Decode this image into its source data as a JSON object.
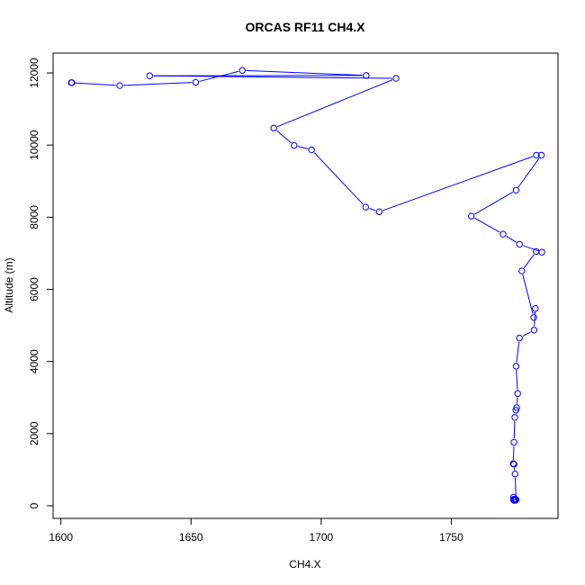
{
  "chart_data": {
    "type": "line",
    "title": "ORCAS RF11 CH4.X",
    "xlabel": "CH4.X",
    "ylabel": "Altitude (m)",
    "xlim": [
      1597,
      1791
    ],
    "ylim": [
      -350,
      12550
    ],
    "xticks": [
      1600,
      1650,
      1700,
      1750
    ],
    "yticks": [
      0,
      2000,
      4000,
      6000,
      8000,
      10000,
      12000
    ],
    "grid": false,
    "marker": "open-circle",
    "series_color": "#0000ff",
    "x": [
      1774.2,
      1774.5,
      1773.9,
      1774.1,
      1774.6,
      1774.3,
      1774.8,
      1774.0,
      1774.4,
      1774.2,
      1773.9,
      1774.7,
      1774.3,
      1774.1,
      1774.5,
      1774.6,
      1774.3,
      1774.0,
      1774.2,
      1774.9,
      1774.5,
      1774.1,
      1773.8,
      1774.1,
      1774.4,
      1774.8,
      1775.1,
      1775.5,
      1774.9,
      1776.2,
      1781.8,
      1782.3,
      1781.7,
      1777.1,
      1782.6,
      1784.8,
      1776.2,
      1769.9,
      1757.7,
      1774.9,
      1784.6,
      1782.7,
      1722.3,
      1717.1,
      1696.3,
      1689.6,
      1681.8,
      1728.8,
      1634.1,
      1717.3,
      1669.7,
      1651.8,
      1622.6,
      1604.0,
      1604.2
    ],
    "y": [
      150,
      160,
      170,
      180,
      150,
      160,
      175,
      165,
      155,
      150,
      240,
      160,
      170,
      180,
      165,
      175,
      155,
      160,
      150,
      170,
      880,
      1150,
      1170,
      1760,
      2450,
      2650,
      2720,
      3110,
      3870,
      4650,
      4870,
      5470,
      5220,
      6510,
      7050,
      7030,
      7250,
      7530,
      8030,
      8750,
      9720,
      9720,
      8150,
      8280,
      9870,
      9990,
      10470,
      11850,
      11920,
      11930,
      12070,
      11740,
      11650,
      11730,
      11730
    ]
  }
}
